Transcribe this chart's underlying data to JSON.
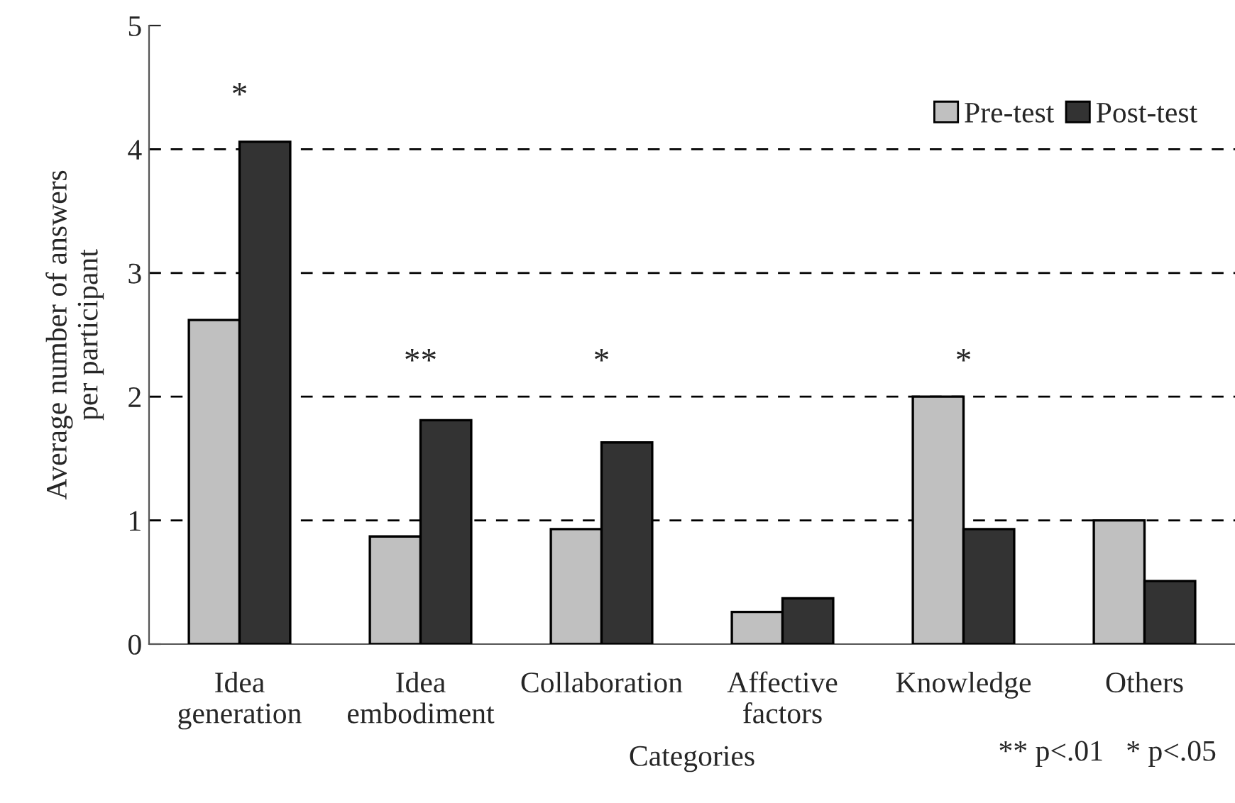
{
  "chart_data": {
    "type": "bar",
    "xlabel": "Categories",
    "ylabel": "Average number of answers\nper participant",
    "categories": [
      "Idea\ngeneration",
      "Idea\nembodiment",
      "Collaboration",
      "Affective\nfactors",
      "Knowledge",
      "Others"
    ],
    "series": [
      {
        "name": "Pre-test",
        "color": "#c0c0c0",
        "values": [
          2.62,
          0.87,
          0.93,
          0.26,
          2.0,
          1.0
        ]
      },
      {
        "name": "Post-test",
        "color": "#333333",
        "values": [
          4.06,
          1.81,
          1.63,
          0.37,
          0.93,
          0.51
        ]
      }
    ],
    "ylim": [
      0,
      5
    ],
    "yticks": [
      0,
      1,
      2,
      3,
      4,
      5
    ],
    "grid": "y",
    "legend": "top right",
    "annotations": [
      "*",
      "**",
      "*",
      "*",
      "** p<.01   * p<.05"
    ]
  }
}
